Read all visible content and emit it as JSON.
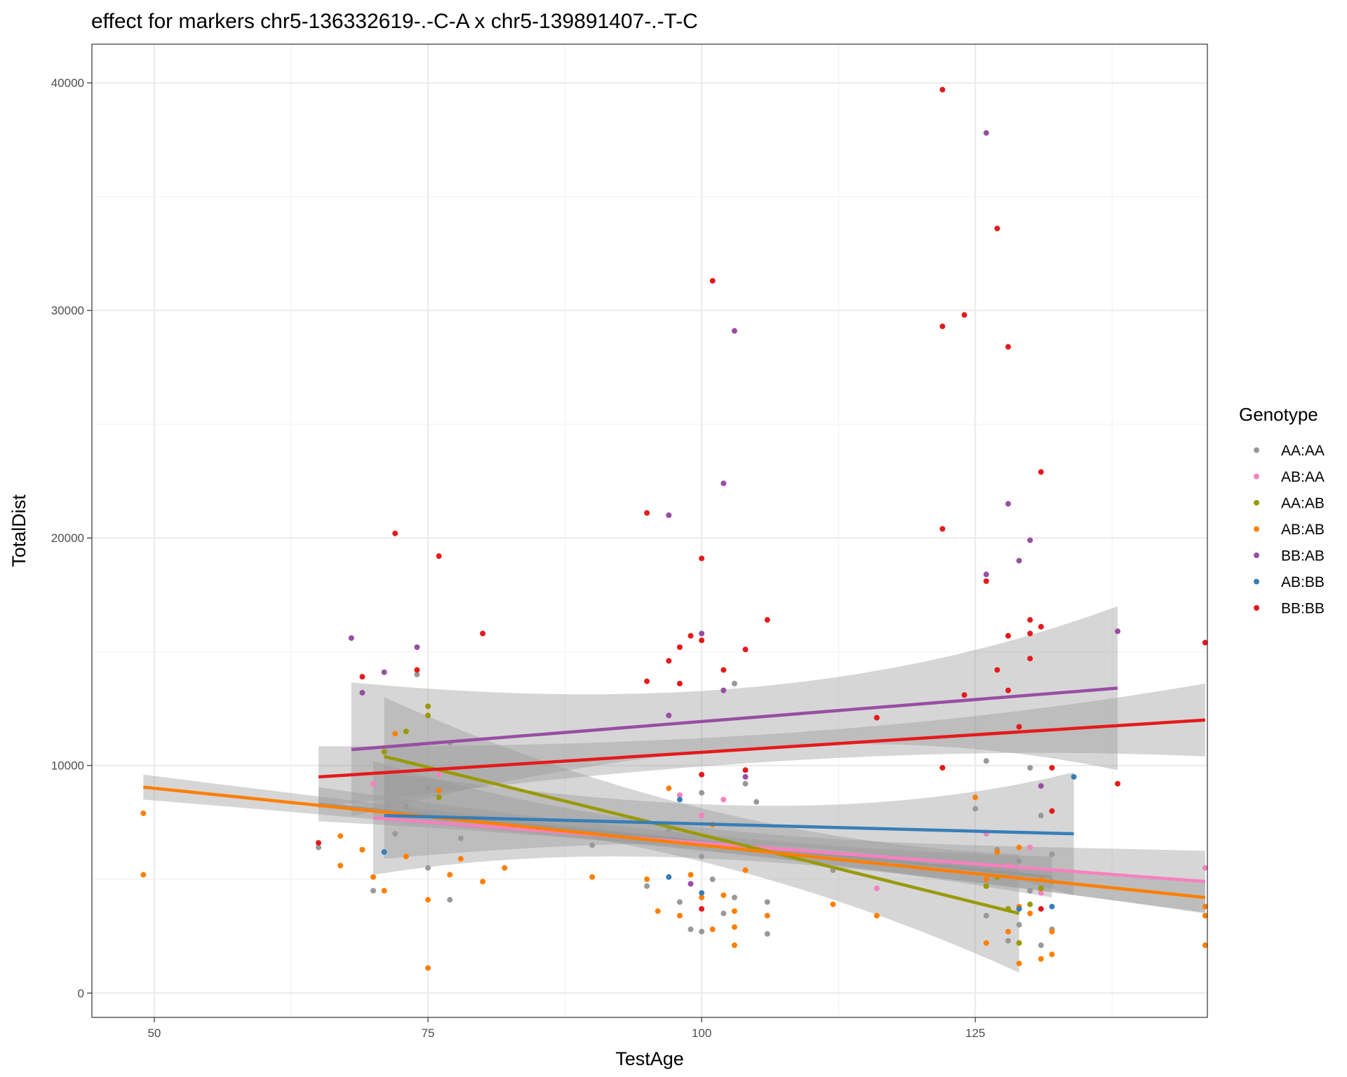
{
  "chart_data": {
    "type": "scatter",
    "title": "effect for markers chr5-136332619-.-C-A x chr5-139891407-.-T-C",
    "xlabel": "TestAge",
    "ylabel": "TotalDist",
    "xlim": [
      44.3,
      146.2
    ],
    "ylim": [
      -1070,
      41700
    ],
    "x_ticks": [
      50,
      75,
      100,
      125
    ],
    "y_ticks": [
      0,
      10000,
      20000,
      30000,
      40000
    ],
    "grid": true,
    "legend": {
      "title": "Genotype",
      "position": "right"
    },
    "series": [
      {
        "name": "AA:AA",
        "color": "#999999",
        "points": [
          [
            65,
            6400
          ],
          [
            69,
            6300
          ],
          [
            70,
            4500
          ],
          [
            72,
            7000
          ],
          [
            73,
            8200
          ],
          [
            74,
            14000
          ],
          [
            75,
            5500
          ],
          [
            75,
            9000
          ],
          [
            77,
            4100
          ],
          [
            77,
            11000
          ],
          [
            78,
            6800
          ],
          [
            90,
            6500
          ],
          [
            95,
            4700
          ],
          [
            97,
            7200
          ],
          [
            98,
            4000
          ],
          [
            99,
            2800
          ],
          [
            100,
            2700
          ],
          [
            100,
            6000
          ],
          [
            100,
            8800
          ],
          [
            101,
            5000
          ],
          [
            102,
            3500
          ],
          [
            103,
            13600
          ],
          [
            103,
            4200
          ],
          [
            104,
            9200
          ],
          [
            105,
            8400
          ],
          [
            106,
            4000
          ],
          [
            106,
            2600
          ],
          [
            112,
            5400
          ],
          [
            125,
            8100
          ],
          [
            126,
            10200
          ],
          [
            126,
            3400
          ],
          [
            127,
            6300
          ],
          [
            128,
            2300
          ],
          [
            129,
            3000
          ],
          [
            129,
            5800
          ],
          [
            130,
            9900
          ],
          [
            130,
            4500
          ],
          [
            131,
            2100
          ],
          [
            131,
            7800
          ],
          [
            132,
            4900
          ],
          [
            132,
            2800
          ],
          [
            132,
            6100
          ]
        ]
      },
      {
        "name": "AB:AA",
        "color": "#f781bf",
        "points": [
          [
            70,
            9200
          ],
          [
            76,
            9600
          ],
          [
            98,
            8700
          ],
          [
            100,
            7800
          ],
          [
            102,
            8500
          ],
          [
            116,
            4600
          ],
          [
            126,
            7000
          ],
          [
            128,
            5600
          ],
          [
            130,
            6400
          ],
          [
            131,
            4400
          ],
          [
            146,
            5500
          ]
        ]
      },
      {
        "name": "AA:AB",
        "color": "#999900",
        "points": [
          [
            71,
            10600
          ],
          [
            73,
            11500
          ],
          [
            75,
            12600
          ],
          [
            75,
            12200
          ],
          [
            76,
            8600
          ],
          [
            126,
            4700
          ],
          [
            127,
            5100
          ],
          [
            128,
            3700
          ],
          [
            129,
            2200
          ],
          [
            130,
            3900
          ],
          [
            131,
            4600
          ]
        ]
      },
      {
        "name": "AB:AB",
        "color": "#ff7f00",
        "points": [
          [
            49,
            7900
          ],
          [
            49,
            5200
          ],
          [
            67,
            6900
          ],
          [
            67,
            5600
          ],
          [
            69,
            6300
          ],
          [
            70,
            5100
          ],
          [
            71,
            4500
          ],
          [
            72,
            11400
          ],
          [
            73,
            6000
          ],
          [
            75,
            1100
          ],
          [
            75,
            4100
          ],
          [
            76,
            8900
          ],
          [
            77,
            5200
          ],
          [
            78,
            5900
          ],
          [
            80,
            4900
          ],
          [
            82,
            5500
          ],
          [
            90,
            5100
          ],
          [
            95,
            5000
          ],
          [
            96,
            3600
          ],
          [
            97,
            9000
          ],
          [
            98,
            3400
          ],
          [
            99,
            5200
          ],
          [
            100,
            4200
          ],
          [
            101,
            2800
          ],
          [
            101,
            7400
          ],
          [
            102,
            4300
          ],
          [
            103,
            2100
          ],
          [
            103,
            3600
          ],
          [
            103,
            2900
          ],
          [
            104,
            5400
          ],
          [
            106,
            3400
          ],
          [
            112,
            3900
          ],
          [
            116,
            3400
          ],
          [
            125,
            8600
          ],
          [
            126,
            2200
          ],
          [
            126,
            5000
          ],
          [
            127,
            6200
          ],
          [
            128,
            2700
          ],
          [
            129,
            1300
          ],
          [
            129,
            3800
          ],
          [
            129,
            6400
          ],
          [
            130,
            3500
          ],
          [
            131,
            1500
          ],
          [
            131,
            5000
          ],
          [
            132,
            1700
          ],
          [
            132,
            2700
          ],
          [
            146,
            3800
          ],
          [
            146,
            2100
          ],
          [
            146,
            3400
          ]
        ]
      },
      {
        "name": "BB:AB",
        "color": "#984ea3",
        "points": [
          [
            68,
            15600
          ],
          [
            71,
            14100
          ],
          [
            74,
            15200
          ],
          [
            69,
            13200
          ],
          [
            97,
            21000
          ],
          [
            97,
            12200
          ],
          [
            99,
            4800
          ],
          [
            100,
            15800
          ],
          [
            102,
            22400
          ],
          [
            102,
            13300
          ],
          [
            103,
            29100
          ],
          [
            104,
            9500
          ],
          [
            126,
            37800
          ],
          [
            126,
            18400
          ],
          [
            128,
            21500
          ],
          [
            129,
            19000
          ],
          [
            130,
            19900
          ],
          [
            131,
            9100
          ],
          [
            138,
            15900
          ]
        ]
      },
      {
        "name": "AB:BB",
        "color": "#377eb8",
        "points": [
          [
            71,
            6200
          ],
          [
            97,
            5100
          ],
          [
            98,
            8500
          ],
          [
            100,
            4400
          ],
          [
            129,
            3700
          ],
          [
            132,
            3800
          ],
          [
            134,
            9500
          ]
        ]
      },
      {
        "name": "BB:BB",
        "color": "#e41a1c",
        "points": [
          [
            65,
            6600
          ],
          [
            69,
            13900
          ],
          [
            72,
            20200
          ],
          [
            74,
            14200
          ],
          [
            76,
            19200
          ],
          [
            80,
            15800
          ],
          [
            95,
            21100
          ],
          [
            95,
            13700
          ],
          [
            97,
            14600
          ],
          [
            98,
            15200
          ],
          [
            98,
            13600
          ],
          [
            99,
            15700
          ],
          [
            100,
            19100
          ],
          [
            100,
            15500
          ],
          [
            100,
            3700
          ],
          [
            100,
            9600
          ],
          [
            101,
            31300
          ],
          [
            102,
            14200
          ],
          [
            104,
            15100
          ],
          [
            104,
            9800
          ],
          [
            106,
            16400
          ],
          [
            116,
            12100
          ],
          [
            122,
            39700
          ],
          [
            122,
            29300
          ],
          [
            122,
            20400
          ],
          [
            122,
            9900
          ],
          [
            124,
            29800
          ],
          [
            124,
            13100
          ],
          [
            126,
            18100
          ],
          [
            127,
            33600
          ],
          [
            127,
            14200
          ],
          [
            128,
            28400
          ],
          [
            128,
            15700
          ],
          [
            128,
            13300
          ],
          [
            129,
            11700
          ],
          [
            130,
            16400
          ],
          [
            130,
            15800
          ],
          [
            130,
            14700
          ],
          [
            131,
            22900
          ],
          [
            131,
            16100
          ],
          [
            131,
            3700
          ],
          [
            132,
            9900
          ],
          [
            132,
            8000
          ],
          [
            138,
            9200
          ],
          [
            146,
            15400
          ]
        ]
      }
    ],
    "fit_lines": [
      {
        "series": "AA:AA",
        "color": "#999999",
        "x": [
          65,
          132
        ],
        "y": [
          8300,
          5100
        ],
        "ci_low": [
          7500,
          4200
        ],
        "ci_high": [
          9000,
          6000
        ]
      },
      {
        "series": "AB:AA",
        "color": "#f781bf",
        "x": [
          70,
          146
        ],
        "y": [
          7700,
          4900
        ],
        "ci_low": [
          5200,
          3600
        ],
        "ci_high": [
          10200,
          6300
        ]
      },
      {
        "series": "AA:AB",
        "color": "#999900",
        "x": [
          71,
          129
        ],
        "y": [
          10400,
          3500
        ],
        "ci_low": [
          7800,
          900
        ],
        "ci_high": [
          13000,
          6100
        ]
      },
      {
        "series": "AB:AB",
        "color": "#ff7f00",
        "x": [
          49,
          146
        ],
        "y": [
          9050,
          4200
        ],
        "ci_low": [
          8500,
          3500
        ],
        "ci_high": [
          9600,
          4900
        ]
      },
      {
        "series": "BB:AB",
        "color": "#984ea3",
        "x": [
          68,
          138
        ],
        "y": [
          10700,
          13400
        ],
        "ci_low": [
          7800,
          9800
        ],
        "ci_high": [
          13700,
          17000
        ]
      },
      {
        "series": "AB:BB",
        "color": "#377eb8",
        "x": [
          71,
          134
        ],
        "y": [
          7800,
          7000
        ],
        "ci_low": [
          5900,
          4300
        ],
        "ci_high": [
          9700,
          9700
        ]
      },
      {
        "series": "BB:BB",
        "color": "#e41a1c",
        "x": [
          65,
          146
        ],
        "y": [
          9500,
          12000
        ],
        "ci_low": [
          8200,
          10400
        ],
        "ci_high": [
          10900,
          13600
        ]
      }
    ]
  }
}
